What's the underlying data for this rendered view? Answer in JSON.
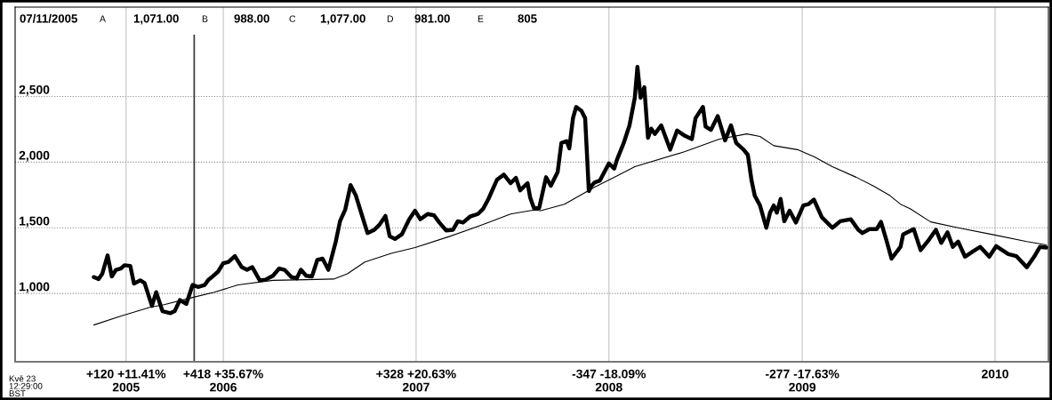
{
  "chart_data": {
    "type": "line",
    "annotations": [
      "07/11/2005",
      "A",
      "1,071.00",
      "B",
      "988.00",
      "C",
      "1,077.00",
      "D",
      "981.00",
      "E",
      "805",
      "Kvě 23\n12:29:00\nBST"
    ],
    "xlim": [
      "2004-12-03",
      "2010-04-12"
    ],
    "xticks": [
      {
        "value": "2005-07-01",
        "label": "+120 +11.41%\n2005"
      },
      {
        "value": "2006-01-01",
        "label": "+418 +35.67%\n2006"
      },
      {
        "value": "2007-01-01",
        "label": "+328 +20.63%\n2007"
      },
      {
        "value": "2008-01-01",
        "label": "-347 -18.09%\n2008"
      },
      {
        "value": "2009-01-01",
        "label": "-277 -17.63%\n2009"
      },
      {
        "value": "2010-01-01",
        "label": "2010"
      }
    ],
    "ylim": [
      480,
      3180
    ],
    "yticks": [
      {
        "value": 1000,
        "label": "1,000"
      },
      {
        "value": 1500,
        "label": "1,500"
      },
      {
        "value": 2000,
        "label": "2,000"
      },
      {
        "value": 2500,
        "label": "2,500"
      }
    ],
    "grid": true,
    "ref_lines": [
      {
        "axis": "x",
        "value": "2005-11-07",
        "color": "#333333"
      }
    ],
    "series": [
      {
        "color": "#000000",
        "x": [
          "2005-05-01",
          "2005-05-10",
          "2005-05-17",
          "2005-05-27",
          "2005-06-04",
          "2005-06-12",
          "2005-06-21",
          "2005-06-28",
          "2005-07-09",
          "2005-07-16",
          "2005-07-28",
          "2005-08-05",
          "2005-08-19",
          "2005-08-27",
          "2005-09-08",
          "2005-09-23",
          "2005-10-01",
          "2005-10-11",
          "2005-10-23",
          "2005-11-04",
          "2005-11-14",
          "2005-11-27",
          "2005-12-04",
          "2005-12-12",
          "2005-12-22",
          "2006-01-01",
          "2006-01-11",
          "2006-01-23",
          "2006-02-05",
          "2006-02-15",
          "2006-02-25",
          "2006-03-11",
          "2006-03-22",
          "2006-04-05",
          "2006-04-17",
          "2006-04-27",
          "2006-05-10",
          "2006-05-20",
          "2006-05-28",
          "2006-06-07",
          "2006-06-18",
          "2006-06-28",
          "2006-07-08",
          "2006-07-19",
          "2006-08-02",
          "2006-08-10",
          "2006-08-20",
          "2006-08-30",
          "2006-09-09",
          "2006-09-19",
          "2006-10-01",
          "2006-10-14",
          "2006-10-24",
          "2006-11-04",
          "2006-11-12",
          "2006-11-22",
          "2006-12-05",
          "2006-12-19",
          "2006-12-30",
          "2007-01-09",
          "2007-01-23",
          "2007-02-04",
          "2007-02-14",
          "2007-02-27",
          "2007-03-12",
          "2007-03-21",
          "2007-03-31",
          "2007-04-13",
          "2007-04-28",
          "2007-05-08",
          "2007-05-18",
          "2007-06-03",
          "2007-06-16",
          "2007-06-29",
          "2007-07-09",
          "2007-07-17",
          "2007-07-31",
          "2007-08-05",
          "2007-08-12",
          "2007-08-22",
          "2007-09-04",
          "2007-09-13",
          "2007-09-26",
          "2007-10-03",
          "2007-10-13",
          "2007-10-18",
          "2007-10-25",
          "2007-10-31",
          "2007-11-10",
          "2007-11-17",
          "2007-11-24",
          "2007-11-29",
          "2007-12-05",
          "2007-12-15",
          "2008-01-01",
          "2008-01-11",
          "2008-01-16",
          "2008-01-29",
          "2008-02-09",
          "2008-02-19",
          "2008-02-24",
          "2008-03-01",
          "2008-03-08",
          "2008-03-15",
          "2008-03-21",
          "2008-03-28",
          "2008-04-09",
          "2008-04-26",
          "2008-05-09",
          "2008-05-24",
          "2008-06-06",
          "2008-06-13",
          "2008-06-27",
          "2008-07-02",
          "2008-07-12",
          "2008-07-25",
          "2008-08-08",
          "2008-08-19",
          "2008-08-29",
          "2008-09-12",
          "2008-09-20",
          "2008-09-27",
          "2008-10-03",
          "2008-10-13",
          "2008-10-25",
          "2008-11-01",
          "2008-11-08",
          "2008-11-14",
          "2008-11-21",
          "2008-11-28",
          "2008-12-08",
          "2008-12-20",
          "2009-01-03",
          "2009-01-13",
          "2009-01-23",
          "2009-02-07",
          "2009-02-27",
          "2009-03-14",
          "2009-04-03",
          "2009-04-17",
          "2009-04-25",
          "2009-05-08",
          "2009-05-22",
          "2009-05-30",
          "2009-06-09",
          "2009-06-19",
          "2009-07-06",
          "2009-07-11",
          "2009-07-31",
          "2009-08-13",
          "2009-08-29",
          "2009-09-11",
          "2009-09-21",
          "2009-10-03",
          "2009-10-13",
          "2009-10-23",
          "2009-11-05",
          "2009-11-20",
          "2009-12-04",
          "2009-12-21",
          "2010-01-03",
          "2010-01-26",
          "2010-02-10",
          "2010-03-02",
          "2010-03-16",
          "2010-03-27",
          "2010-04-08"
        ],
        "values": [
          1125,
          1110,
          1150,
          1290,
          1130,
          1180,
          1190,
          1215,
          1210,
          1075,
          1100,
          1080,
          905,
          1010,
          865,
          850,
          865,
          950,
          920,
          1065,
          1050,
          1065,
          1105,
          1130,
          1165,
          1230,
          1240,
          1285,
          1200,
          1180,
          1200,
          1100,
          1105,
          1135,
          1190,
          1180,
          1125,
          1115,
          1180,
          1135,
          1130,
          1255,
          1265,
          1180,
          1395,
          1550,
          1640,
          1825,
          1745,
          1615,
          1460,
          1485,
          1525,
          1590,
          1435,
          1415,
          1450,
          1565,
          1630,
          1565,
          1605,
          1595,
          1540,
          1480,
          1485,
          1550,
          1540,
          1585,
          1605,
          1645,
          1720,
          1865,
          1905,
          1840,
          1880,
          1785,
          1840,
          1730,
          1650,
          1650,
          1885,
          1820,
          1925,
          2145,
          2160,
          2105,
          2335,
          2420,
          2390,
          2335,
          1780,
          1820,
          1845,
          1860,
          1990,
          1950,
          2015,
          2145,
          2280,
          2490,
          2725,
          2490,
          2570,
          2185,
          2255,
          2215,
          2280,
          2095,
          2240,
          2200,
          2175,
          2335,
          2420,
          2270,
          2245,
          2350,
          2165,
          2280,
          2145,
          2095,
          2055,
          1860,
          1745,
          1670,
          1500,
          1615,
          1670,
          1615,
          1720,
          1550,
          1630,
          1540,
          1670,
          1680,
          1715,
          1580,
          1500,
          1550,
          1565,
          1485,
          1460,
          1490,
          1490,
          1545,
          1410,
          1265,
          1355,
          1450,
          1490,
          1330,
          1410,
          1485,
          1385,
          1465,
          1355,
          1395,
          1280,
          1320,
          1355,
          1280,
          1360,
          1300,
          1285,
          1200,
          1280,
          1355,
          1350
        ]
      },
      {
        "color": "#000000",
        "x": [
          "2005-05-01",
          "2005-06-19",
          "2005-08-15",
          "2005-09-11",
          "2005-11-04",
          "2005-12-15",
          "2006-01-29",
          "2006-04-05",
          "2006-06-07",
          "2006-07-29",
          "2006-08-24",
          "2006-09-26",
          "2006-11-15",
          "2006-12-30",
          "2007-03-06",
          "2007-05-08",
          "2007-06-29",
          "2007-08-12",
          "2007-08-25",
          "2007-10-09",
          "2007-12-05",
          "2008-01-16",
          "2008-02-19",
          "2008-05-24",
          "2008-07-28",
          "2008-09-18",
          "2008-10-13",
          "2008-11-08",
          "2008-12-23",
          "2009-01-24",
          "2009-02-27",
          "2009-04-13",
          "2009-05-15",
          "2009-06-16",
          "2009-07-06",
          "2009-07-24",
          "2009-09-01",
          "2009-10-23",
          "2009-12-25",
          "2010-03-02",
          "2010-04-08"
        ],
        "values": [
          760,
          825,
          895,
          915,
          970,
          1010,
          1065,
          1100,
          1105,
          1110,
          1150,
          1240,
          1305,
          1350,
          1435,
          1525,
          1605,
          1635,
          1630,
          1680,
          1810,
          1895,
          1965,
          2080,
          2175,
          2215,
          2195,
          2125,
          2095,
          2040,
          1965,
          1885,
          1820,
          1745,
          1680,
          1645,
          1545,
          1500,
          1450,
          1395,
          1370
        ]
      }
    ]
  }
}
